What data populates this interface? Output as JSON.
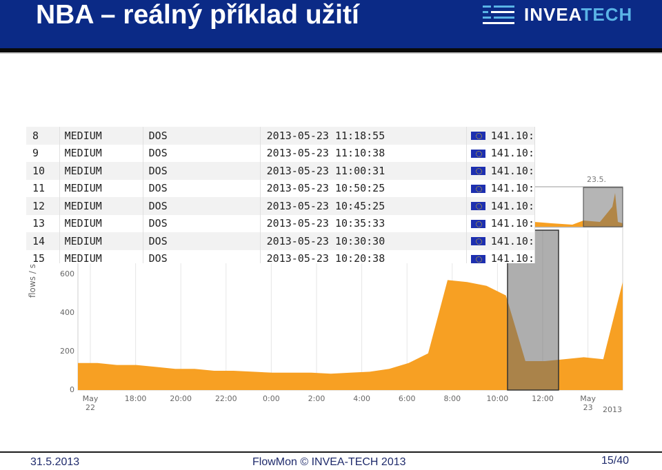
{
  "header": {
    "title": "NBA – reálný příklad užití",
    "logo_text_main": "INVEA",
    "logo_text_accent": "TECH"
  },
  "colors": {
    "header_bg": "#0b2a86",
    "flow_fill": "#f7a023",
    "selection": "#6b6b6b",
    "footer_text": "#1e2a6b"
  },
  "chart_data": {
    "type": "area",
    "ylabel": "flows / s",
    "ylim": [
      0,
      650
    ],
    "yticks": [
      "0",
      "200",
      "400",
      "600"
    ],
    "xticks": [
      "May 22",
      "18:00",
      "20:00",
      "22:00",
      "0:00",
      "2:00",
      "4:00",
      "6:00",
      "8:00",
      "10:00",
      "12:00",
      "May 23"
    ],
    "xtick_year": "2013",
    "mini_label": "23.5.",
    "series": [
      {
        "values": [
          140,
          140,
          130,
          130,
          120,
          110,
          110,
          100,
          100,
          95,
          90,
          90,
          90,
          85,
          90,
          95,
          110,
          140,
          190,
          570,
          560,
          540,
          490,
          150,
          150,
          160,
          170,
          160,
          560
        ]
      }
    ]
  },
  "table": {
    "rows": [
      {
        "num": "8",
        "severity": "MEDIUM",
        "type": "DOS",
        "time": "2013-05-23 11:18:55",
        "ip": "141.10:"
      },
      {
        "num": "9",
        "severity": "MEDIUM",
        "type": "DOS",
        "time": "2013-05-23 11:10:38",
        "ip": "141.10:"
      },
      {
        "num": "10",
        "severity": "MEDIUM",
        "type": "DOS",
        "time": "2013-05-23 11:00:31",
        "ip": "141.10:"
      },
      {
        "num": "11",
        "severity": "MEDIUM",
        "type": "DOS",
        "time": "2013-05-23 10:50:25",
        "ip": "141.10:"
      },
      {
        "num": "12",
        "severity": "MEDIUM",
        "type": "DOS",
        "time": "2013-05-23 10:45:25",
        "ip": "141.10:"
      },
      {
        "num": "13",
        "severity": "MEDIUM",
        "type": "DOS",
        "time": "2013-05-23 10:35:33",
        "ip": "141.10:"
      },
      {
        "num": "14",
        "severity": "MEDIUM",
        "type": "DOS",
        "time": "2013-05-23 10:30:30",
        "ip": "141.10:"
      },
      {
        "num": "15",
        "severity": "MEDIUM",
        "type": "DOS",
        "time": "2013-05-23 10:20:38",
        "ip": "141.10:"
      }
    ]
  },
  "footer": {
    "date": "31.5.2013",
    "center": "FlowMon © INVEA-TECH 2013",
    "page": "15/40"
  }
}
